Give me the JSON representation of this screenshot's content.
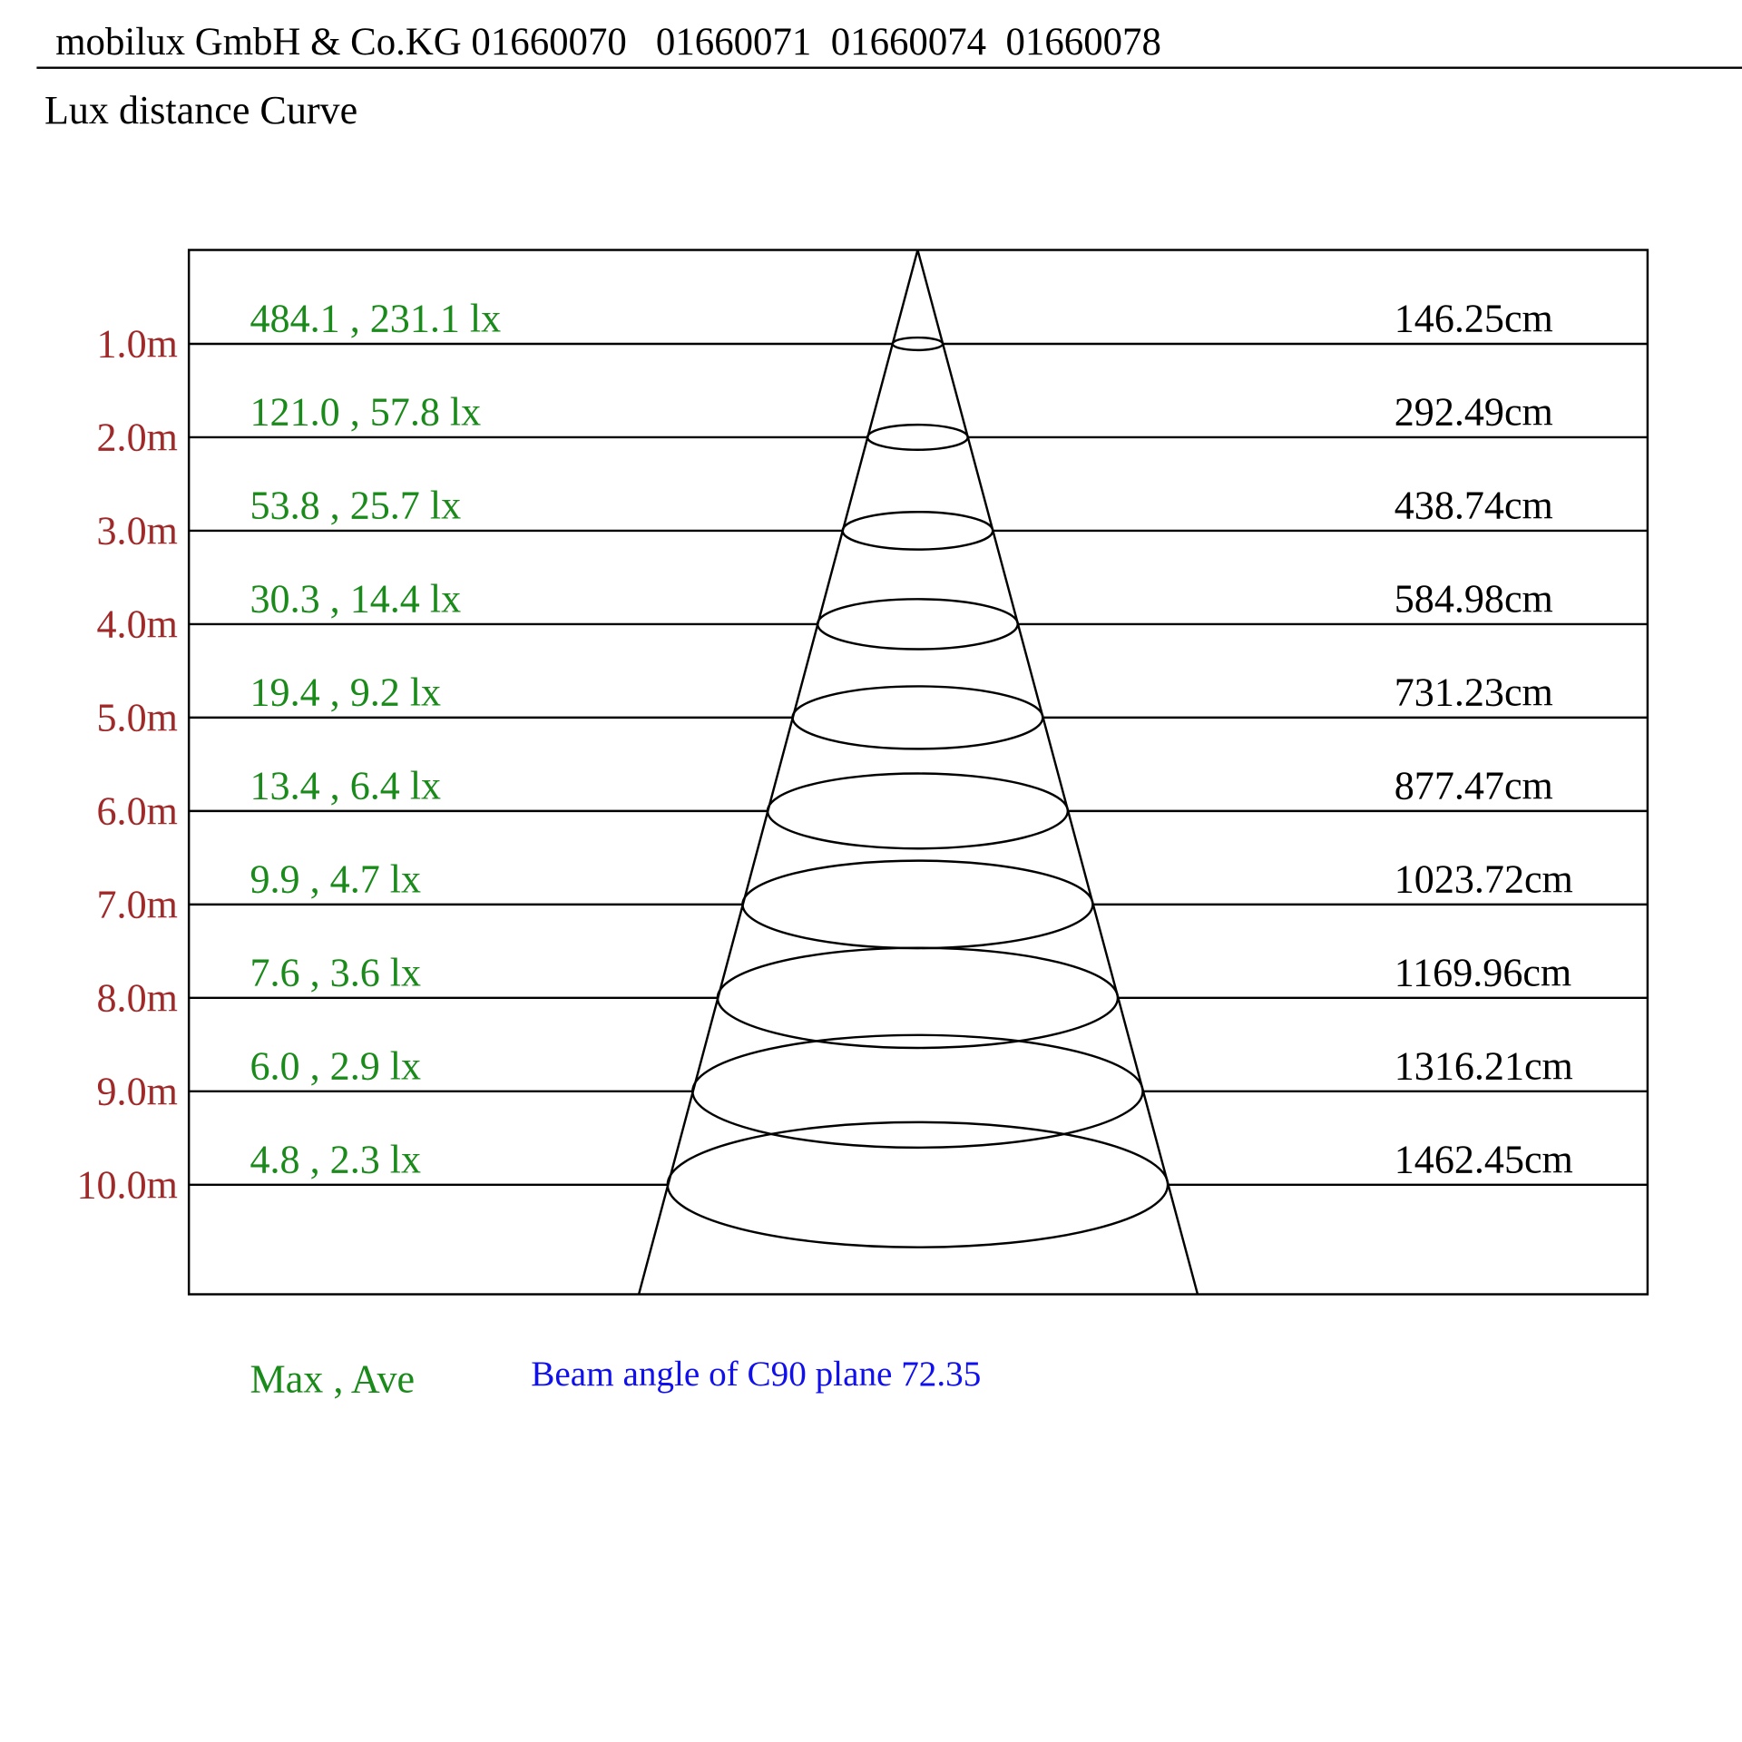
{
  "header": {
    "title": "mobilux GmbH & Co.KG 01660070   01660071  01660074  01660078"
  },
  "subtitle": "Lux distance Curve",
  "rows": [
    {
      "distance": "1.0m",
      "lux": "484.1 , 231.1 lx",
      "diameter": "146.25cm"
    },
    {
      "distance": "2.0m",
      "lux": "121.0 , 57.8 lx",
      "diameter": "292.49cm"
    },
    {
      "distance": "3.0m",
      "lux": "53.8 , 25.7 lx",
      "diameter": "438.74cm"
    },
    {
      "distance": "4.0m",
      "lux": "30.3 , 14.4 lx",
      "diameter": "584.98cm"
    },
    {
      "distance": "5.0m",
      "lux": "19.4 , 9.2 lx",
      "diameter": "731.23cm"
    },
    {
      "distance": "6.0m",
      "lux": "13.4 , 6.4 lx",
      "diameter": "877.47cm"
    },
    {
      "distance": "7.0m",
      "lux": "9.9 , 4.7 lx",
      "diameter": "1023.72cm"
    },
    {
      "distance": "8.0m",
      "lux": "7.6 , 3.6 lx",
      "diameter": "1169.96cm"
    },
    {
      "distance": "9.0m",
      "lux": "6.0 , 2.9 lx",
      "diameter": "1316.21cm"
    },
    {
      "distance": "10.0m",
      "lux": "4.8 , 2.3 lx",
      "diameter": "1462.45cm"
    }
  ],
  "legend": "Max , Ave",
  "beam_angle": "Beam angle of C90 plane 72.35"
}
